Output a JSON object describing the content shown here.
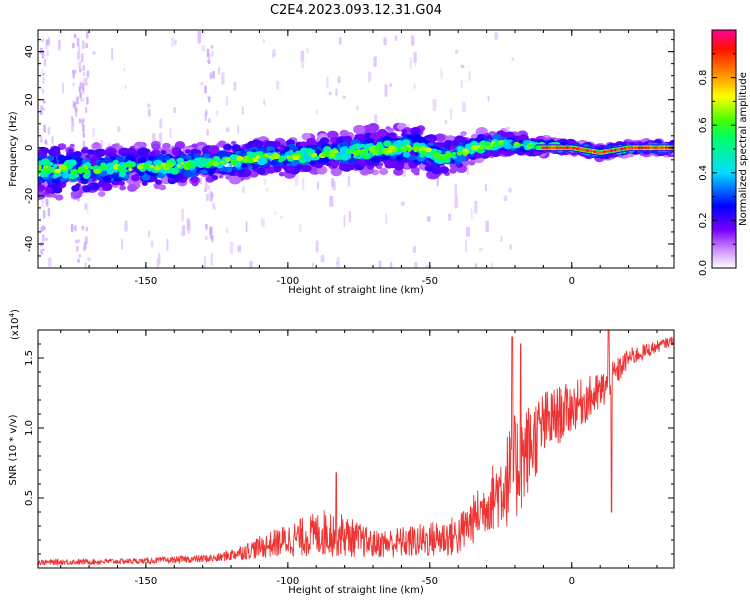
{
  "title": "C2E4.2023.093.12.31.G04",
  "chart_data": [
    {
      "type": "heatmap",
      "xlabel": "Height of straight line (km)",
      "ylabel": "Frequency (Hz)",
      "xlim": [
        -188,
        36
      ],
      "ylim": [
        -50,
        49
      ],
      "xticks": [
        -150,
        -100,
        -50,
        0
      ],
      "yticks": [
        -40,
        -20,
        0,
        20,
        40
      ],
      "colorbar": {
        "label": "Normalized spectral amplitude",
        "range": [
          0.0,
          1.0
        ],
        "ticks": [
          0.0,
          0.2,
          0.4,
          0.6,
          0.8
        ],
        "tick_labels": [
          "0.0",
          "0.2",
          "0.4",
          "0.6",
          "0.8"
        ],
        "colormap": "rainbow"
      },
      "ridge": [
        {
          "x": -185,
          "y": -9,
          "halfwidth": 9
        },
        {
          "x": -170,
          "y": -9,
          "halfwidth": 8
        },
        {
          "x": -150,
          "y": -8,
          "halfwidth": 7
        },
        {
          "x": -130,
          "y": -7,
          "halfwidth": 6
        },
        {
          "x": -110,
          "y": -4,
          "halfwidth": 6
        },
        {
          "x": -90,
          "y": -3,
          "halfwidth": 6
        },
        {
          "x": -70,
          "y": -1,
          "halfwidth": 7
        },
        {
          "x": -55,
          "y": 0,
          "halfwidth": 8
        },
        {
          "x": -45,
          "y": -4,
          "halfwidth": 6
        },
        {
          "x": -35,
          "y": 0,
          "halfwidth": 5
        },
        {
          "x": -25,
          "y": 2,
          "halfwidth": 4
        },
        {
          "x": -15,
          "y": 1,
          "halfwidth": 3
        },
        {
          "x": 0,
          "y": 0,
          "halfwidth": 2
        },
        {
          "x": 10,
          "y": -2,
          "halfwidth": 2
        },
        {
          "x": 20,
          "y": 0,
          "halfwidth": 2
        },
        {
          "x": 36,
          "y": 0,
          "halfwidth": 2
        }
      ]
    },
    {
      "type": "line",
      "xlabel": "Height of straight line (km)",
      "ylabel": "SNR (10 * v/v)",
      "yscale_label": "(x10",
      "yscale_exponent": "4",
      "yscale_close": ")",
      "xlim": [
        -188,
        36
      ],
      "ylim": [
        0,
        1.7
      ],
      "xticks": [
        -150,
        -100,
        -50,
        0
      ],
      "yticks": [
        0.5,
        1.0,
        1.5
      ],
      "ytick_labels": [
        "0.5",
        "1.0",
        "1.5"
      ],
      "color": "#ee3333",
      "envelope": [
        {
          "x": -188,
          "mean": 0.04,
          "amp": 0.02
        },
        {
          "x": -150,
          "mean": 0.05,
          "amp": 0.02
        },
        {
          "x": -125,
          "mean": 0.07,
          "amp": 0.03
        },
        {
          "x": -115,
          "mean": 0.12,
          "amp": 0.06
        },
        {
          "x": -100,
          "mean": 0.2,
          "amp": 0.12
        },
        {
          "x": -85,
          "mean": 0.26,
          "amp": 0.18
        },
        {
          "x": -70,
          "mean": 0.17,
          "amp": 0.1
        },
        {
          "x": -55,
          "mean": 0.19,
          "amp": 0.12
        },
        {
          "x": -40,
          "mean": 0.23,
          "amp": 0.15
        },
        {
          "x": -30,
          "mean": 0.45,
          "amp": 0.2
        },
        {
          "x": -20,
          "mean": 0.7,
          "amp": 0.4
        },
        {
          "x": -10,
          "mean": 1.02,
          "amp": 0.25
        },
        {
          "x": 0,
          "mean": 1.15,
          "amp": 0.18
        },
        {
          "x": 10,
          "mean": 1.25,
          "amp": 0.15
        },
        {
          "x": 20,
          "mean": 1.5,
          "amp": 0.07
        },
        {
          "x": 36,
          "mean": 1.63,
          "amp": 0.03
        }
      ],
      "spikes": [
        {
          "x": -21,
          "y": 1.65
        },
        {
          "x": -18,
          "y": 1.6
        },
        {
          "x": 13,
          "y": 1.7
        },
        {
          "x": 14,
          "y": 0.4
        },
        {
          "x": -83,
          "y": 0.68
        }
      ]
    }
  ]
}
